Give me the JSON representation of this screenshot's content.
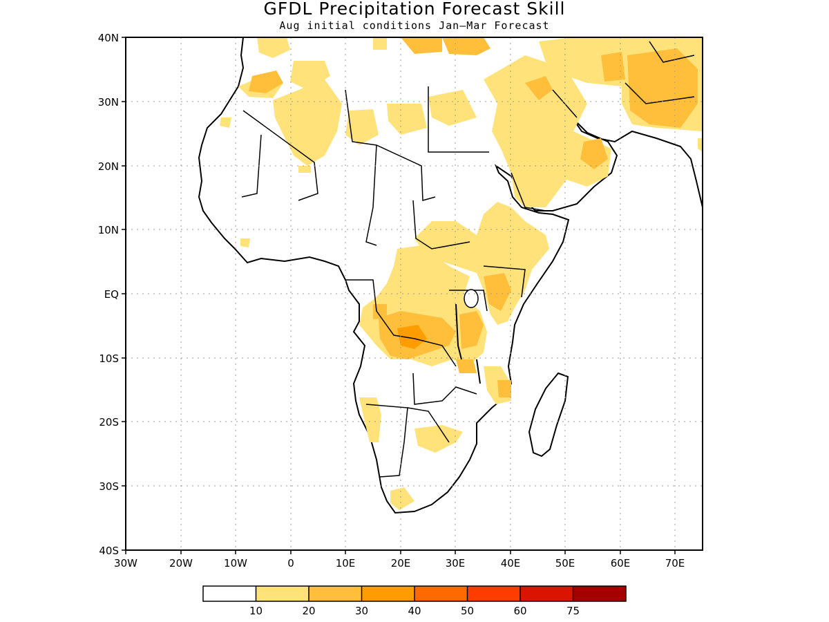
{
  "title": "GFDL Precipitation Forecast Skill",
  "subtitle": "Aug initial conditions  Jan–Mar Forecast",
  "map": {
    "lon_range": [
      -30,
      75
    ],
    "lat_range": [
      -40,
      40
    ],
    "lat_labels": [
      "40N",
      "30N",
      "20N",
      "10N",
      "EQ",
      "10S",
      "20S",
      "30S",
      "40S"
    ],
    "lon_labels": [
      "30W",
      "20W",
      "10W",
      "0",
      "10E",
      "20E",
      "30E",
      "40E",
      "50E",
      "60E",
      "70E"
    ],
    "grid": "dotted",
    "region": "Africa"
  },
  "colorbar": {
    "labels": [
      "10",
      "20",
      "30",
      "40",
      "50",
      "60",
      "75"
    ],
    "colors": [
      "#ffffff",
      "#ffe27a",
      "#ffbf3a",
      "#ff9d00",
      "#ff6a00",
      "#ff3c00",
      "#db1400",
      "#a50000"
    ]
  }
}
